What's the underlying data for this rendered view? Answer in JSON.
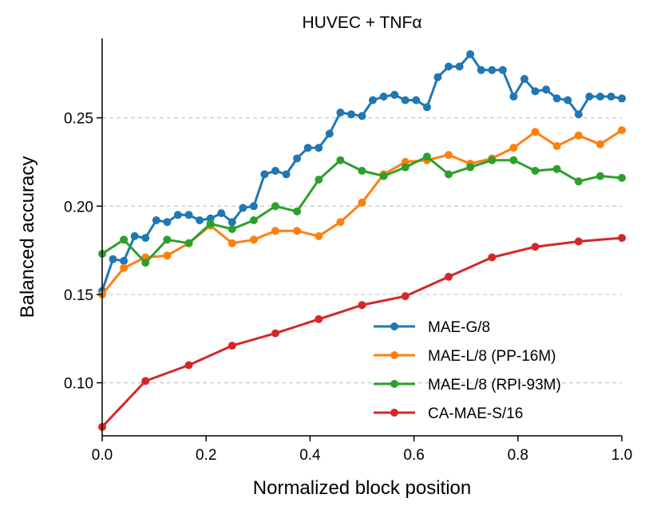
{
  "chart_data": {
    "type": "line",
    "title": "HUVEC + TNFα",
    "xlabel": "Normalized block position",
    "ylabel": "Balanced accuracy",
    "xlim": [
      0.0,
      1.0
    ],
    "ylim": [
      0.07,
      0.295
    ],
    "x_ticks": [
      "0.0",
      "0.2",
      "0.4",
      "0.6",
      "0.8",
      "1.0"
    ],
    "y_ticks": [
      "0.10",
      "0.15",
      "0.20",
      "0.25"
    ],
    "grid": "horizontal-dashed",
    "legend_position": "lower-right",
    "series": [
      {
        "name": "MAE-G/8",
        "color": "#1f77b4",
        "x": [
          0.0,
          0.0208,
          0.0417,
          0.0625,
          0.0833,
          0.1042,
          0.125,
          0.1458,
          0.1667,
          0.1875,
          0.2083,
          0.2292,
          0.25,
          0.2708,
          0.2917,
          0.3125,
          0.3333,
          0.3542,
          0.375,
          0.3958,
          0.4167,
          0.4375,
          0.4583,
          0.4792,
          0.5,
          0.5208,
          0.5417,
          0.5625,
          0.5833,
          0.6042,
          0.625,
          0.6458,
          0.6667,
          0.6875,
          0.7083,
          0.7292,
          0.75,
          0.7708,
          0.7917,
          0.8125,
          0.8333,
          0.8542,
          0.875,
          0.8958,
          0.9167,
          0.9375,
          0.9583,
          0.9792,
          1.0
        ],
        "values": [
          0.152,
          0.17,
          0.169,
          0.183,
          0.182,
          0.192,
          0.191,
          0.195,
          0.195,
          0.192,
          0.193,
          0.196,
          0.191,
          0.199,
          0.2,
          0.218,
          0.22,
          0.218,
          0.227,
          0.233,
          0.233,
          0.241,
          0.253,
          0.252,
          0.251,
          0.26,
          0.262,
          0.263,
          0.26,
          0.26,
          0.256,
          0.273,
          0.279,
          0.279,
          0.286,
          0.277,
          0.277,
          0.277,
          0.262,
          0.272,
          0.265,
          0.266,
          0.261,
          0.26,
          0.252,
          0.262,
          0.262,
          0.262,
          0.261
        ]
      },
      {
        "name": "MAE-L/8 (PP-16M)",
        "color": "#ff7f0e",
        "x": [
          0.0,
          0.0417,
          0.0833,
          0.125,
          0.1667,
          0.2083,
          0.25,
          0.2917,
          0.3333,
          0.375,
          0.4167,
          0.4583,
          0.5,
          0.5417,
          0.5833,
          0.625,
          0.6667,
          0.7083,
          0.75,
          0.7917,
          0.8333,
          0.875,
          0.9167,
          0.9583,
          1.0
        ],
        "values": [
          0.15,
          0.165,
          0.171,
          0.172,
          0.179,
          0.189,
          0.179,
          0.181,
          0.186,
          0.186,
          0.183,
          0.191,
          0.202,
          0.218,
          0.225,
          0.226,
          0.229,
          0.224,
          0.227,
          0.233,
          0.242,
          0.234,
          0.24,
          0.235,
          0.243
        ]
      },
      {
        "name": "MAE-L/8 (RPI-93M)",
        "color": "#2ca02c",
        "x": [
          0.0,
          0.0417,
          0.0833,
          0.125,
          0.1667,
          0.2083,
          0.25,
          0.2917,
          0.3333,
          0.375,
          0.4167,
          0.4583,
          0.5,
          0.5417,
          0.5833,
          0.625,
          0.6667,
          0.7083,
          0.75,
          0.7917,
          0.8333,
          0.875,
          0.9167,
          0.9583,
          1.0
        ],
        "values": [
          0.173,
          0.181,
          0.168,
          0.181,
          0.179,
          0.19,
          0.187,
          0.192,
          0.2,
          0.197,
          0.215,
          0.226,
          0.22,
          0.217,
          0.222,
          0.228,
          0.218,
          0.222,
          0.226,
          0.226,
          0.22,
          0.221,
          0.214,
          0.217,
          0.216
        ]
      },
      {
        "name": "CA-MAE-S/16",
        "color": "#d62728",
        "x": [
          0.0,
          0.0833,
          0.1667,
          0.25,
          0.3333,
          0.4167,
          0.5,
          0.5833,
          0.6667,
          0.75,
          0.8333,
          0.9167,
          1.0
        ],
        "values": [
          0.075,
          0.101,
          0.11,
          0.121,
          0.128,
          0.136,
          0.144,
          0.149,
          0.16,
          0.171,
          0.177,
          0.18,
          0.182
        ]
      }
    ]
  }
}
